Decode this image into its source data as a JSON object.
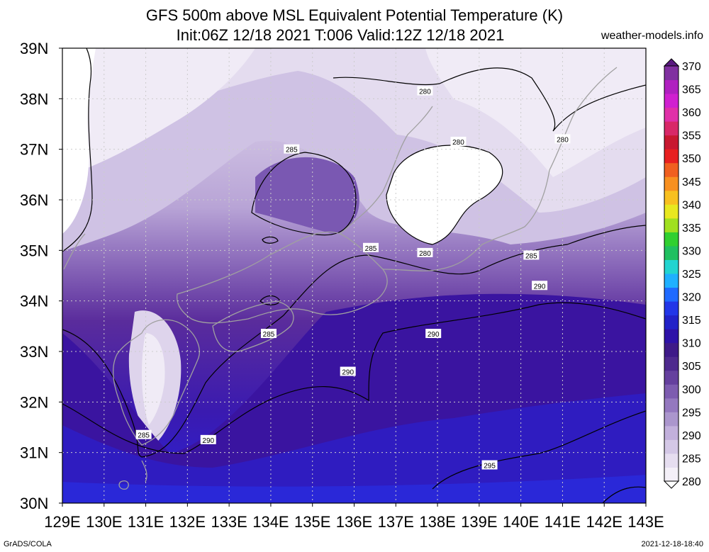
{
  "title": {
    "line1": "GFS 500m above MSL Equivalent Potential Temperature (K)",
    "line2": "Init:06Z 12/18 2021 T:006 Valid:12Z 12/18 2021"
  },
  "site": "weather-models.info",
  "footer": {
    "left": "GrADS/COLA",
    "right": "2021-12-18-18:40"
  },
  "map": {
    "lon_range": [
      129,
      143
    ],
    "lat_range": [
      30,
      39
    ],
    "lon_labels": [
      "129E",
      "130E",
      "131E",
      "132E",
      "133E",
      "134E",
      "135E",
      "136E",
      "137E",
      "138E",
      "139E",
      "140E",
      "141E",
      "142E",
      "143E"
    ],
    "lat_labels": [
      "30N",
      "31N",
      "32N",
      "33N",
      "34N",
      "35N",
      "36N",
      "37N",
      "38N",
      "39N"
    ],
    "contour_labels": [
      {
        "text": "280",
        "lon": 137.7,
        "lat": 38.15
      },
      {
        "text": "280",
        "lon": 138.5,
        "lat": 37.15
      },
      {
        "text": "280",
        "lon": 141.0,
        "lat": 37.2
      },
      {
        "text": "280",
        "lon": 137.7,
        "lat": 34.95
      },
      {
        "text": "285",
        "lon": 134.5,
        "lat": 37.0
      },
      {
        "text": "285",
        "lon": 136.4,
        "lat": 35.05
      },
      {
        "text": "285",
        "lon": 140.25,
        "lat": 34.9
      },
      {
        "text": "285",
        "lon": 133.95,
        "lat": 33.35
      },
      {
        "text": "285",
        "lon": 130.95,
        "lat": 31.35
      },
      {
        "text": "290",
        "lon": 140.45,
        "lat": 34.3
      },
      {
        "text": "290",
        "lon": 137.9,
        "lat": 33.35
      },
      {
        "text": "290",
        "lon": 135.85,
        "lat": 32.6
      },
      {
        "text": "290",
        "lon": 132.5,
        "lat": 31.25
      },
      {
        "text": "295",
        "lon": 139.25,
        "lat": 30.75
      }
    ]
  },
  "colorbar": {
    "levels": [
      "280",
      "285",
      "290",
      "295",
      "300",
      "305",
      "310",
      "315",
      "320",
      "325",
      "330",
      "335",
      "340",
      "345",
      "350",
      "355",
      "360",
      "365",
      "370"
    ],
    "colors": [
      "#f4f0f8",
      "#e6def0",
      "#d4c8e6",
      "#c2b0dc",
      "#ab96cd",
      "#9478bf",
      "#7d5cb0",
      "#65409e",
      "#4e2a8e",
      "#3e1a88",
      "#2e12a8",
      "#2222c8",
      "#2236e8",
      "#1f6aff",
      "#1fb0ff",
      "#22d4d0",
      "#20c060",
      "#30d030",
      "#a0e020",
      "#e8e820",
      "#f8c020",
      "#f89020",
      "#f06020",
      "#e82020",
      "#c81830",
      "#d82868",
      "#e030a8",
      "#d020d0",
      "#b020c0",
      "#8030a0"
    ],
    "unit": "K"
  }
}
